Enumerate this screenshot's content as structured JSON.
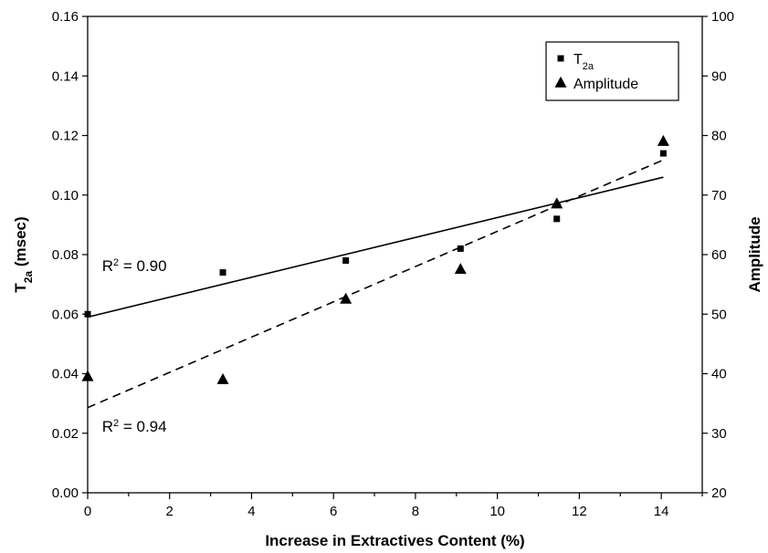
{
  "chart_data": {
    "type": "scatter",
    "xlabel": "Increase in Extractives Content (%)",
    "ylabel_left": {
      "main": "T",
      "sub": "2a",
      "rest": " (msec)"
    },
    "ylabel_right": "Amplitude",
    "xlim": [
      0,
      15
    ],
    "ylim_left": [
      0.0,
      0.16
    ],
    "ylim_right": [
      20,
      100
    ],
    "x_ticks": [
      "0",
      "2",
      "4",
      "6",
      "8",
      "10",
      "12",
      "14"
    ],
    "y_left_ticks": [
      "0.00",
      "0.02",
      "0.04",
      "0.06",
      "0.08",
      "0.10",
      "0.12",
      "0.14",
      "0.16"
    ],
    "y_right_ticks": [
      "20",
      "30",
      "40",
      "50",
      "60",
      "70",
      "80",
      "90",
      "100"
    ],
    "grid": false,
    "legend_position": "top-right",
    "series": [
      {
        "name": "T2a",
        "legend_main": "T",
        "legend_sub": "2a",
        "axis": "left",
        "marker": "square",
        "x": [
          0.0,
          3.3,
          6.3,
          9.1,
          11.45,
          14.05
        ],
        "y": [
          0.06,
          0.074,
          0.078,
          0.082,
          0.092,
          0.114
        ],
        "fit": {
          "style": "solid",
          "x": [
            0,
            14.05
          ],
          "y": [
            0.059,
            0.106
          ]
        }
      },
      {
        "name": "Amplitude",
        "legend_main": "Amplitude",
        "legend_sub": "",
        "axis": "right",
        "marker": "triangle",
        "x": [
          0.0,
          3.3,
          6.3,
          9.1,
          11.45,
          14.05
        ],
        "y": [
          39.5,
          39.0,
          52.5,
          57.5,
          68.5,
          79.0
        ],
        "fit": {
          "style": "dashed",
          "x": [
            0,
            14.05
          ],
          "y": [
            34.3,
            75.9
          ]
        }
      }
    ],
    "annotations": [
      {
        "id": "r2-t2a",
        "main": "R",
        "sup": "2",
        "rest": " = 0.90",
        "x": 0.35,
        "y_left": 0.0745
      },
      {
        "id": "r2-amp",
        "main": "R",
        "sup": "2",
        "rest": " = 0.94",
        "x": 0.35,
        "y_left": 0.0205
      }
    ]
  }
}
